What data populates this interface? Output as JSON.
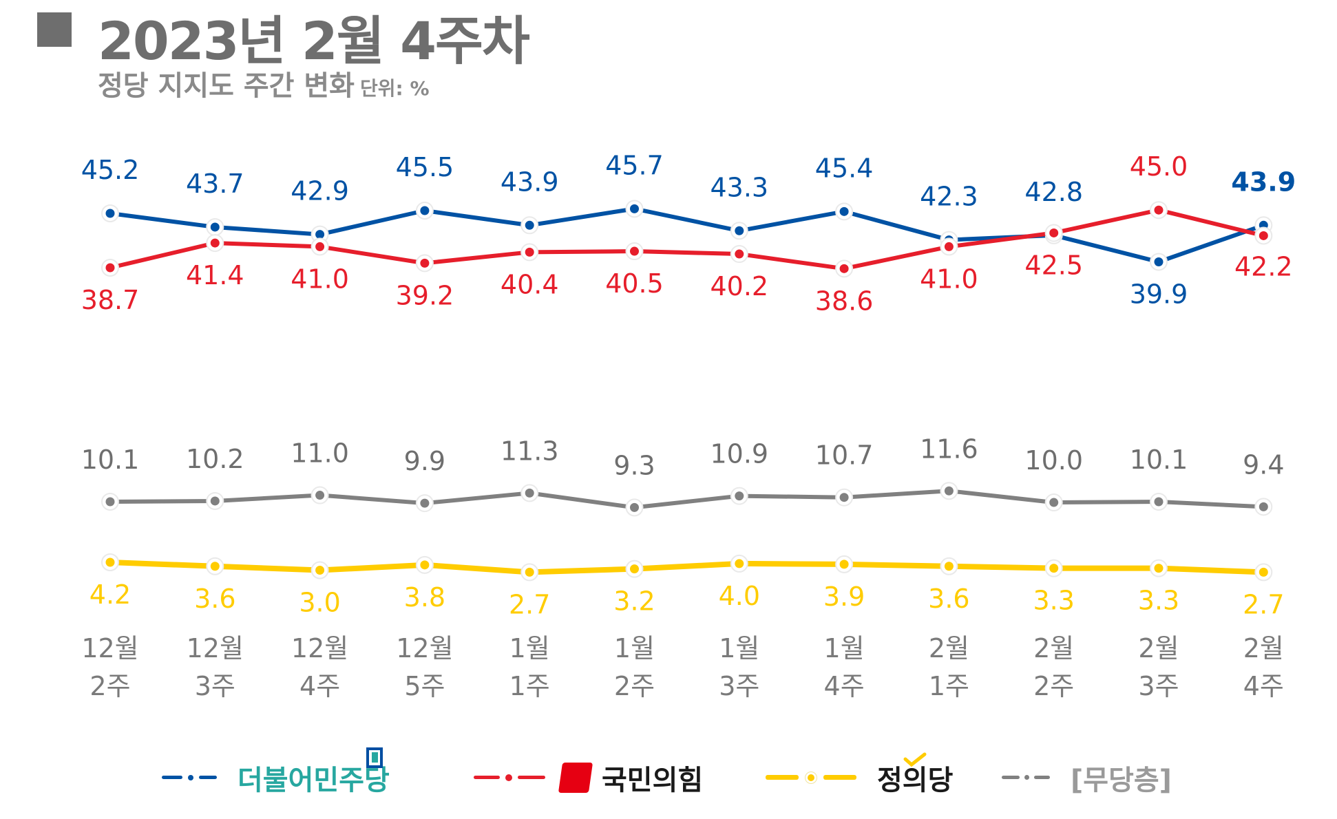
{
  "header": {
    "title": "2023년 2월 4주차",
    "subtitle": "정당 지지도 주간 변화",
    "unit": "단위: %"
  },
  "colors": {
    "democratic": "#0052A4",
    "ppp": "#E61E2B",
    "justice": "#FFCC00",
    "independent": "#808080",
    "axis_label": "#7a7a7a",
    "dem_legend_text": "#27A7A0"
  },
  "chart_data": {
    "type": "line",
    "title": "정당 지지도 주간 변화",
    "unit": "%",
    "categories": [
      {
        "month": "12월",
        "week": "2주"
      },
      {
        "month": "12월",
        "week": "3주"
      },
      {
        "month": "12월",
        "week": "4주"
      },
      {
        "month": "12월",
        "week": "5주"
      },
      {
        "month": "1월",
        "week": "1주"
      },
      {
        "month": "1월",
        "week": "2주"
      },
      {
        "month": "1월",
        "week": "3주"
      },
      {
        "month": "1월",
        "week": "4주"
      },
      {
        "month": "2월",
        "week": "1주"
      },
      {
        "month": "2월",
        "week": "2주"
      },
      {
        "month": "2월",
        "week": "3주"
      },
      {
        "month": "2월",
        "week": "4주"
      }
    ],
    "series": [
      {
        "key": "dem",
        "name": "더불어민주당",
        "color": "#0052A4",
        "values": [
          "45.2",
          "43.7",
          "42.9",
          "45.5",
          "43.9",
          "45.7",
          "43.3",
          "45.4",
          "42.3",
          "42.8",
          "39.9",
          "43.9"
        ]
      },
      {
        "key": "ppp",
        "name": "국민의힘",
        "color": "#E61E2B",
        "values": [
          "38.7",
          "41.4",
          "41.0",
          "39.2",
          "40.4",
          "40.5",
          "40.2",
          "38.6",
          "41.0",
          "42.5",
          "45.0",
          "42.2"
        ]
      },
      {
        "key": "ind",
        "name": "[무당층]",
        "color": "#808080",
        "values": [
          "10.1",
          "10.2",
          "11.0",
          "9.9",
          "11.3",
          "9.3",
          "10.9",
          "10.7",
          "11.6",
          "10.0",
          "10.1",
          "9.4"
        ]
      },
      {
        "key": "jus",
        "name": "정의당",
        "color": "#FFCC00",
        "values": [
          "4.2",
          "3.6",
          "3.0",
          "3.8",
          "2.7",
          "3.2",
          "4.0",
          "3.9",
          "3.6",
          "3.3",
          "3.3",
          "2.7"
        ]
      }
    ],
    "legend_position": "bottom",
    "grid": false
  },
  "legend": {
    "democratic": "더불어민주당",
    "ppp": "국민의힘",
    "justice": "정의당",
    "independent": "[무당층]"
  }
}
